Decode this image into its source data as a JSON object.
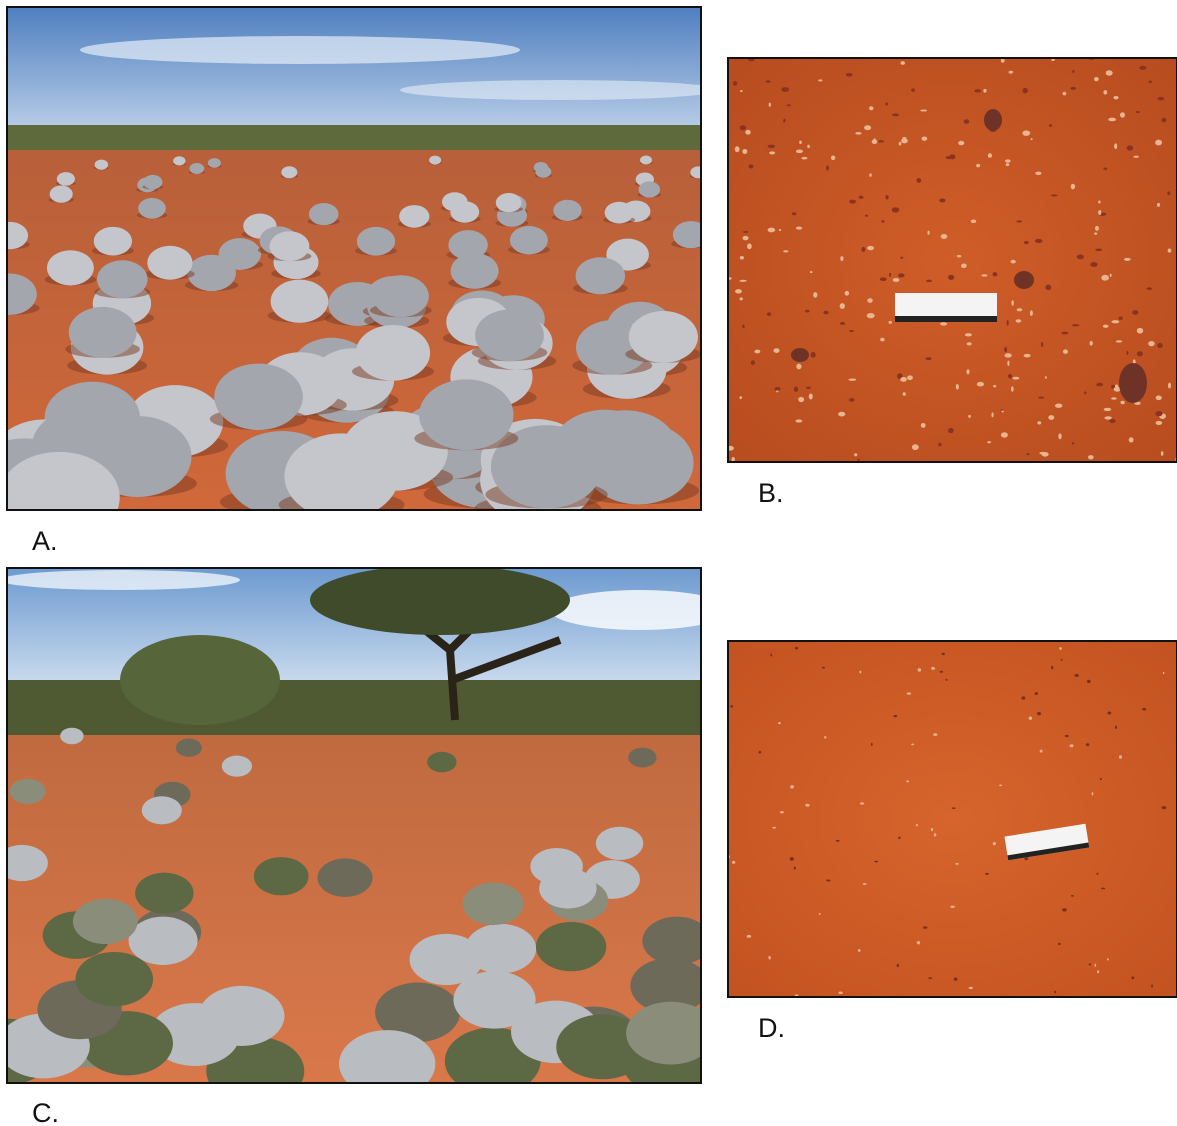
{
  "panels": [
    {
      "label": "A."
    },
    {
      "label": "B."
    },
    {
      "label": "C."
    },
    {
      "label": "D."
    }
  ]
}
